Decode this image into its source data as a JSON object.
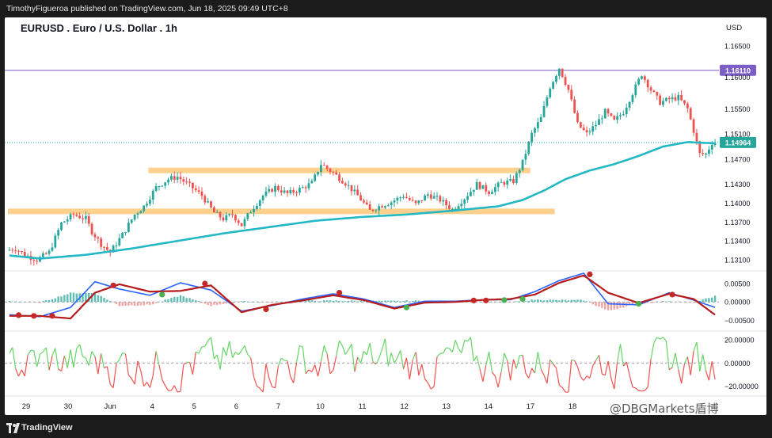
{
  "header": {
    "publisher": "TimothyFigueroa published on TradingView.com, Jun 18, 2025 09:49 UTC+8"
  },
  "chart_title": "EURUSD . Euro / U.S. Dollar . 1h",
  "currency": "USD",
  "footer": {
    "brand": "TradingView"
  },
  "watermark": "@DBGMarkets盾博",
  "colors": {
    "up": "#26a69a",
    "down": "#ef5350",
    "ma": "#22b8c4",
    "resistance_line": "#7b5fc6",
    "zone": "#fcc97a",
    "macd_fast": "#2962ff",
    "macd_slow": "#b71c1c",
    "osc_up": "#66d466",
    "osc_down": "#ef5350"
  },
  "chart_data": [
    {
      "type": "candlestick",
      "x_labels": [
        "29",
        "30",
        "Jun",
        "4",
        "5",
        "6",
        "7",
        "10",
        "11",
        "12",
        "13",
        "14",
        "17",
        "18"
      ],
      "y_ticks": [
        1.165,
        1.16,
        1.155,
        1.151,
        1.147,
        1.143,
        1.14,
        1.137,
        1.134,
        1.131
      ],
      "y_tick_labels": [
        "1.16500",
        "1.16000",
        "1.15500",
        "1.15100",
        "1.14700",
        "1.14300",
        "1.14000",
        "1.13700",
        "1.13400",
        "1.13100"
      ],
      "ylim": [
        1.1295,
        1.1695
      ],
      "price_path": [
        [
          0,
          1.1325
        ],
        [
          3,
          1.1328
        ],
        [
          6,
          1.1318
        ],
        [
          10,
          1.131
        ],
        [
          14,
          1.1322
        ],
        [
          18,
          1.1368
        ],
        [
          22,
          1.1382
        ],
        [
          26,
          1.1375
        ],
        [
          28,
          1.1355
        ],
        [
          31,
          1.1335
        ],
        [
          34,
          1.1322
        ],
        [
          38,
          1.135
        ],
        [
          42,
          1.1382
        ],
        [
          45,
          1.1395
        ],
        [
          49,
          1.1425
        ],
        [
          53,
          1.1438
        ],
        [
          56,
          1.1442
        ],
        [
          60,
          1.1428
        ],
        [
          64,
          1.1412
        ],
        [
          68,
          1.1385
        ],
        [
          71,
          1.1375
        ],
        [
          74,
          1.1382
        ],
        [
          77,
          1.1365
        ],
        [
          80,
          1.1388
        ],
        [
          84,
          1.1412
        ],
        [
          88,
          1.1425
        ],
        [
          92,
          1.1415
        ],
        [
          96,
          1.1422
        ],
        [
          100,
          1.1432
        ],
        [
          103,
          1.1462
        ],
        [
          107,
          1.1448
        ],
        [
          111,
          1.1432
        ],
        [
          115,
          1.1412
        ],
        [
          119,
          1.1388
        ],
        [
          122,
          1.1395
        ],
        [
          126,
          1.1402
        ],
        [
          130,
          1.1412
        ],
        [
          134,
          1.1398
        ],
        [
          138,
          1.1414
        ],
        [
          142,
          1.1405
        ],
        [
          146,
          1.139
        ],
        [
          150,
          1.1408
        ],
        [
          154,
          1.143
        ],
        [
          158,
          1.1418
        ],
        [
          162,
          1.1432
        ],
        [
          166,
          1.1435
        ],
        [
          169,
          1.1465
        ],
        [
          172,
          1.151
        ],
        [
          175,
          1.1535
        ],
        [
          178,
          1.1585
        ],
        [
          181,
          1.1615
        ],
        [
          184,
          1.158
        ],
        [
          187,
          1.1525
        ],
        [
          190,
          1.151
        ],
        [
          193,
          1.1525
        ],
        [
          196,
          1.1545
        ],
        [
          199,
          1.153
        ],
        [
          202,
          1.1545
        ],
        [
          205,
          1.1575
        ],
        [
          208,
          1.1605
        ],
        [
          211,
          1.158
        ],
        [
          214,
          1.156
        ],
        [
          217,
          1.1565
        ],
        [
          220,
          1.1568
        ],
        [
          223,
          1.155
        ],
        [
          225,
          1.1515
        ],
        [
          227,
          1.1478
        ],
        [
          229,
          1.1478
        ],
        [
          231,
          1.1496
        ]
      ],
      "moving_average": [
        [
          0,
          1.1317
        ],
        [
          10,
          1.1312
        ],
        [
          25,
          1.1318
        ],
        [
          40,
          1.1328
        ],
        [
          55,
          1.134
        ],
        [
          70,
          1.1352
        ],
        [
          85,
          1.1362
        ],
        [
          100,
          1.1372
        ],
        [
          115,
          1.1378
        ],
        [
          130,
          1.1382
        ],
        [
          145,
          1.1388
        ],
        [
          160,
          1.1395
        ],
        [
          168,
          1.1405
        ],
        [
          175,
          1.142
        ],
        [
          182,
          1.1438
        ],
        [
          190,
          1.1452
        ],
        [
          198,
          1.1462
        ],
        [
          206,
          1.1475
        ],
        [
          214,
          1.149
        ],
        [
          222,
          1.1497
        ],
        [
          231,
          1.1495
        ]
      ],
      "horizontal_lines": [
        {
          "price": 1.1611,
          "label": "1.16110"
        }
      ],
      "zones": [
        {
          "from_bar": 46,
          "to_bar": 170,
          "price": 1.1452
        },
        {
          "from_bar": 0,
          "to_bar": 178,
          "price": 1.1387
        }
      ],
      "last_price": {
        "price": 1.14964,
        "label": "1.14964"
      }
    },
    {
      "type": "line",
      "name": "",
      "y_ticks": [
        0.005,
        0.0,
        -0.005
      ],
      "y_tick_labels": [
        "0.00500",
        "0.00000",
        "−0.00500"
      ],
      "ylim": [
        -0.0075,
        0.0078
      ],
      "fast_line": [
        [
          0,
          -0.0035
        ],
        [
          10,
          -0.004
        ],
        [
          20,
          -0.0015
        ],
        [
          28,
          0.0055
        ],
        [
          36,
          0.0035
        ],
        [
          46,
          0.0018
        ],
        [
          56,
          0.0052
        ],
        [
          66,
          0.0032
        ],
        [
          76,
          -0.0025
        ],
        [
          86,
          -0.001
        ],
        [
          96,
          0.0008
        ],
        [
          106,
          0.0022
        ],
        [
          116,
          0.0008
        ],
        [
          126,
          -0.0015
        ],
        [
          136,
          0.0002
        ],
        [
          146,
          0.0002
        ],
        [
          156,
          0.0006
        ],
        [
          164,
          0.0006
        ],
        [
          172,
          0.0028
        ],
        [
          180,
          0.0058
        ],
        [
          188,
          0.0078
        ],
        [
          196,
          -0.0005
        ],
        [
          206,
          -0.0008
        ],
        [
          216,
          0.0025
        ],
        [
          224,
          0.0005
        ],
        [
          231,
          -0.0015
        ]
      ],
      "slow_line": [
        [
          0,
          -0.0038
        ],
        [
          10,
          -0.0038
        ],
        [
          20,
          -0.0045
        ],
        [
          28,
          0.0025
        ],
        [
          36,
          0.0048
        ],
        [
          46,
          0.0028
        ],
        [
          56,
          0.003
        ],
        [
          66,
          0.0045
        ],
        [
          76,
          -0.0028
        ],
        [
          86,
          -0.0008
        ],
        [
          96,
          0.0004
        ],
        [
          106,
          0.0018
        ],
        [
          116,
          0.0005
        ],
        [
          126,
          -0.0018
        ],
        [
          136,
          -0.0002
        ],
        [
          146,
          0.0
        ],
        [
          156,
          0.0006
        ],
        [
          164,
          0.0008
        ],
        [
          172,
          0.002
        ],
        [
          180,
          0.0052
        ],
        [
          188,
          0.0072
        ],
        [
          196,
          0.0025
        ],
        [
          206,
          -0.0003
        ],
        [
          216,
          0.0022
        ],
        [
          224,
          0.0008
        ],
        [
          231,
          -0.0035
        ]
      ],
      "cross_markers": [
        {
          "bar": 3,
          "value": -0.0036,
          "kind": "down"
        },
        {
          "bar": 8,
          "value": -0.0038,
          "kind": "down"
        },
        {
          "bar": 14,
          "value": -0.0038,
          "kind": "down"
        },
        {
          "bar": 34,
          "value": 0.0045,
          "kind": "down"
        },
        {
          "bar": 50,
          "value": 0.002,
          "kind": "up"
        },
        {
          "bar": 64,
          "value": 0.005,
          "kind": "down"
        },
        {
          "bar": 84,
          "value": -0.002,
          "kind": "down"
        },
        {
          "bar": 108,
          "value": 0.0025,
          "kind": "down"
        },
        {
          "bar": 130,
          "value": -0.0015,
          "kind": "up"
        },
        {
          "bar": 152,
          "value": 0.0004,
          "kind": "down"
        },
        {
          "bar": 156,
          "value": 0.0004,
          "kind": "down"
        },
        {
          "bar": 162,
          "value": 0.0005,
          "kind": "up"
        },
        {
          "bar": 168,
          "value": 0.0008,
          "kind": "up"
        },
        {
          "bar": 190,
          "value": 0.0075,
          "kind": "down"
        },
        {
          "bar": 206,
          "value": -0.0005,
          "kind": "up"
        },
        {
          "bar": 217,
          "value": 0.002,
          "kind": "down"
        }
      ]
    },
    {
      "type": "line",
      "name": "",
      "y_ticks": [
        20.0,
        0.0,
        -20.0
      ],
      "y_tick_labels": [
        "20.00000",
        "0.00000",
        "−20.00000"
      ],
      "ylim": [
        -27,
        26
      ]
    }
  ]
}
